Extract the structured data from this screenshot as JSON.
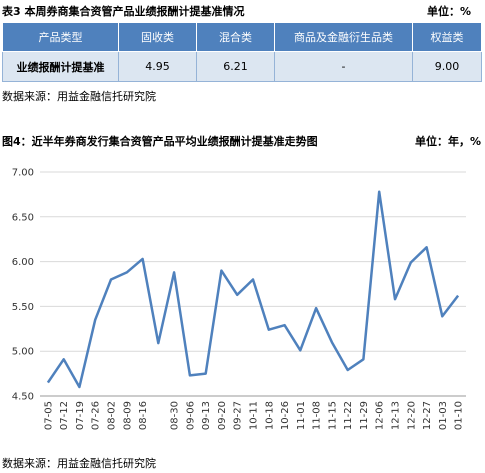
{
  "table": {
    "title": "表3 本周券商集合资管产品业绩报酬计提基准情况",
    "unit": "单位：%",
    "headers": [
      "产品类型",
      "固收类",
      "混合类",
      "商品及金融衍生品类",
      "权益类"
    ],
    "rows": [
      [
        "业绩报酬计提基准",
        "4.95",
        "6.21",
        "-",
        "9.00"
      ]
    ]
  },
  "sources": [
    "数据来源：用益金融信托研究院",
    "数据来源：用益金融信托研究院"
  ],
  "chart_data": {
    "type": "line",
    "title": "图4：近半年券商发行集合资管产品平均业绩报酬计提基准走势图",
    "unit": "单位：年，%",
    "categories": [
      "07-05",
      "07-12",
      "07-19",
      "07-26",
      "08-02",
      "08-09",
      "08-16",
      null,
      "08-30",
      "09-06",
      "09-13",
      "09-20",
      "09-27",
      "10-11",
      "10-18",
      "10-26",
      "11-01",
      "11-08",
      "11-15",
      "11-22",
      "11-29",
      "12-06",
      "12-13",
      "12-20",
      "12-27",
      "01-03",
      "01-10"
    ],
    "values": [
      4.65,
      4.91,
      4.6,
      5.35,
      5.8,
      5.88,
      6.03,
      5.09,
      5.88,
      4.73,
      4.75,
      5.9,
      5.63,
      5.8,
      5.24,
      5.29,
      5.01,
      5.48,
      5.1,
      4.79,
      4.91,
      6.78,
      5.58,
      5.99,
      6.16,
      5.39,
      5.62
    ],
    "color": "#4f81bd",
    "ylim": [
      4.5,
      7.0
    ],
    "yticks": [
      {
        "value": 4.5,
        "label": "4.50"
      },
      {
        "value": 5.0,
        "label": "5.00"
      },
      {
        "value": 5.5,
        "label": "5.50"
      },
      {
        "value": 6.0,
        "label": "6.00"
      },
      {
        "value": 6.5,
        "label": "6.50"
      },
      {
        "value": 7.0,
        "label": "7.00"
      }
    ],
    "grid": true
  }
}
